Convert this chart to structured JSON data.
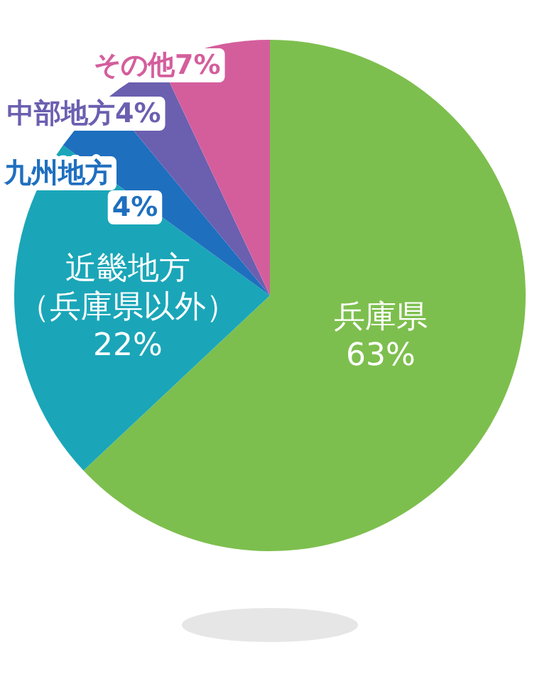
{
  "chart_data": {
    "type": "pie",
    "categories": [
      "兵庫県",
      "近畿地方（兵庫県以外）",
      "九州地方",
      "中部地方",
      "その他"
    ],
    "values": [
      63,
      22,
      4,
      4,
      7
    ],
    "colors": [
      "#7dbf4e",
      "#1aa6b8",
      "#1f6fbf",
      "#6b5fb0",
      "#d45e9c"
    ],
    "value_labels": [
      "63%",
      "22%",
      "4%",
      "4%",
      "7%"
    ]
  }
}
